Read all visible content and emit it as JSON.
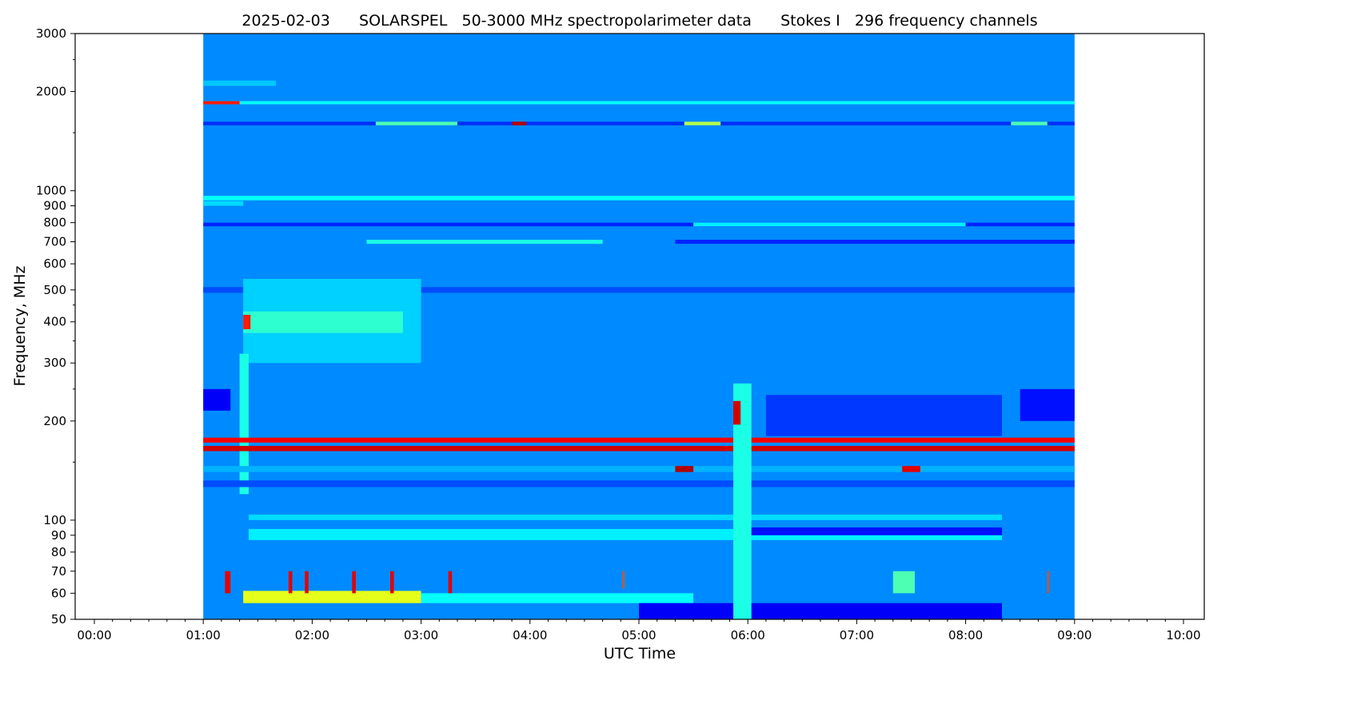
{
  "chart_data": {
    "type": "heatmap",
    "title": "2025-02-03      SOLARSPEL   50-3000 MHz spectropolarimeter data      Stokes I   296 frequency channels",
    "xlabel": "UTC Time",
    "ylabel": "Frequency, MHz",
    "xlim": [
      "00:00",
      "10:00"
    ],
    "ylim": [
      50,
      3000
    ],
    "y_scale": "log",
    "colormap": "jet",
    "grid": false,
    "data_time_range": [
      "01:00",
      "09:00"
    ],
    "x_ticks": [
      "00:00",
      "01:00",
      "02:00",
      "03:00",
      "04:00",
      "05:00",
      "06:00",
      "07:00",
      "08:00",
      "09:00",
      "10:00"
    ],
    "y_ticks": [
      50,
      60,
      70,
      80,
      90,
      100,
      200,
      300,
      400,
      500,
      600,
      700,
      800,
      900,
      1000,
      2000,
      3000
    ],
    "y_ticks_minor": [
      150,
      250,
      350,
      450,
      1500,
      2500
    ],
    "background_intensity": 0.26,
    "features": [
      {
        "freq": [
          2080,
          2160
        ],
        "time": [
          "01:00",
          "01:40"
        ],
        "v": 0.32
      },
      {
        "freq": [
          1830,
          1870
        ],
        "time": [
          "01:00",
          "09:00"
        ],
        "v": 0.38
      },
      {
        "freq": [
          1830,
          1870
        ],
        "time": [
          "01:00",
          "01:20"
        ],
        "v": 0.85
      },
      {
        "freq": [
          1580,
          1620
        ],
        "time": [
          "01:00",
          "09:00"
        ],
        "v": 0.17
      },
      {
        "freq": [
          1580,
          1620
        ],
        "time": [
          "02:35",
          "03:20"
        ],
        "v": 0.45
      },
      {
        "freq": [
          1580,
          1620
        ],
        "time": [
          "03:50",
          "03:58"
        ],
        "v": 0.95
      },
      {
        "freq": [
          1580,
          1620
        ],
        "time": [
          "05:25",
          "05:45"
        ],
        "v": 0.55
      },
      {
        "freq": [
          1580,
          1620
        ],
        "time": [
          "08:25",
          "08:45"
        ],
        "v": 0.45
      },
      {
        "freq": [
          935,
          965
        ],
        "time": [
          "01:00",
          "09:00"
        ],
        "v": 0.38
      },
      {
        "freq": [
          900,
          930
        ],
        "time": [
          "01:00",
          "01:22"
        ],
        "v": 0.34
      },
      {
        "freq": [
          780,
          800
        ],
        "time": [
          "01:00",
          "09:00"
        ],
        "v": 0.16
      },
      {
        "freq": [
          780,
          800
        ],
        "time": [
          "05:30",
          "08:00"
        ],
        "v": 0.36
      },
      {
        "freq": [
          690,
          710
        ],
        "time": [
          "02:30",
          "04:40"
        ],
        "v": 0.4
      },
      {
        "freq": [
          690,
          710
        ],
        "time": [
          "05:20",
          "09:00"
        ],
        "v": 0.16
      },
      {
        "freq": [
          490,
          510
        ],
        "time": [
          "01:00",
          "09:00"
        ],
        "v": 0.2
      },
      {
        "freq": [
          300,
          540
        ],
        "time": [
          "01:22",
          "03:00"
        ],
        "v": 0.33
      },
      {
        "freq": [
          370,
          430
        ],
        "time": [
          "01:22",
          "02:50"
        ],
        "v": 0.42
      },
      {
        "freq": [
          380,
          420
        ],
        "time": [
          "01:22",
          "01:26"
        ],
        "v": 0.85
      },
      {
        "freq": [
          120,
          320
        ],
        "time": [
          "01:20",
          "01:25"
        ],
        "v": 0.4
      },
      {
        "freq": [
          215,
          250
        ],
        "time": [
          "01:00",
          "01:15"
        ],
        "v": 0.12
      },
      {
        "freq": [
          200,
          250
        ],
        "time": [
          "08:30",
          "09:00"
        ],
        "v": 0.14
      },
      {
        "freq": [
          180,
          240
        ],
        "time": [
          "06:10",
          "08:20"
        ],
        "v": 0.18
      },
      {
        "freq": [
          172,
          178
        ],
        "time": [
          "01:00",
          "09:00"
        ],
        "v": 0.88
      },
      {
        "freq": [
          162,
          168
        ],
        "time": [
          "01:00",
          "09:00"
        ],
        "v": 0.92
      },
      {
        "freq": [
          140,
          146
        ],
        "time": [
          "01:00",
          "09:00"
        ],
        "v": 0.3
      },
      {
        "freq": [
          140,
          146
        ],
        "time": [
          "05:20",
          "05:30"
        ],
        "v": 0.95
      },
      {
        "freq": [
          140,
          146
        ],
        "time": [
          "07:25",
          "07:35"
        ],
        "v": 0.9
      },
      {
        "freq": [
          126,
          132
        ],
        "time": [
          "01:00",
          "09:00"
        ],
        "v": 0.2
      },
      {
        "freq": [
          100,
          104
        ],
        "time": [
          "01:25",
          "08:20"
        ],
        "v": 0.34
      },
      {
        "freq": [
          87,
          94
        ],
        "time": [
          "01:25",
          "08:20"
        ],
        "v": 0.36
      },
      {
        "freq": [
          90,
          95
        ],
        "time": [
          "06:00",
          "08:20"
        ],
        "v": 0.14
      },
      {
        "freq": [
          56,
          61
        ],
        "time": [
          "01:22",
          "03:00"
        ],
        "v": 0.6
      },
      {
        "freq": [
          56,
          60
        ],
        "time": [
          "03:00",
          "05:30"
        ],
        "v": 0.38
      },
      {
        "freq": [
          50,
          56
        ],
        "time": [
          "05:00",
          "08:20"
        ],
        "v": 0.12
      },
      {
        "freq": [
          50,
          260
        ],
        "time": [
          "05:52",
          "06:02"
        ],
        "v": 0.4
      },
      {
        "freq": [
          195,
          230
        ],
        "time": [
          "05:52",
          "05:56"
        ],
        "v": 0.92
      },
      {
        "freq": [
          60,
          70
        ],
        "time": [
          "01:12",
          "01:15"
        ],
        "v": 0.9
      },
      {
        "freq": [
          60,
          70
        ],
        "time": [
          "01:47",
          "01:49"
        ],
        "v": 0.9
      },
      {
        "freq": [
          60,
          70
        ],
        "time": [
          "01:56",
          "01:58"
        ],
        "v": 0.9
      },
      {
        "freq": [
          60,
          70
        ],
        "time": [
          "02:22",
          "02:24"
        ],
        "v": 0.9
      },
      {
        "freq": [
          60,
          70
        ],
        "time": [
          "02:43",
          "02:45"
        ],
        "v": 0.9
      },
      {
        "freq": [
          60,
          70
        ],
        "time": [
          "03:15",
          "03:17"
        ],
        "v": 0.9
      },
      {
        "freq": [
          62,
          70
        ],
        "time": [
          "04:51",
          "04:52"
        ],
        "v": 0.8
      },
      {
        "freq": [
          60,
          70
        ],
        "time": [
          "07:20",
          "07:32"
        ],
        "v": 0.45
      },
      {
        "freq": [
          60,
          70
        ],
        "time": [
          "08:45",
          "08:46"
        ],
        "v": 0.8
      }
    ]
  }
}
